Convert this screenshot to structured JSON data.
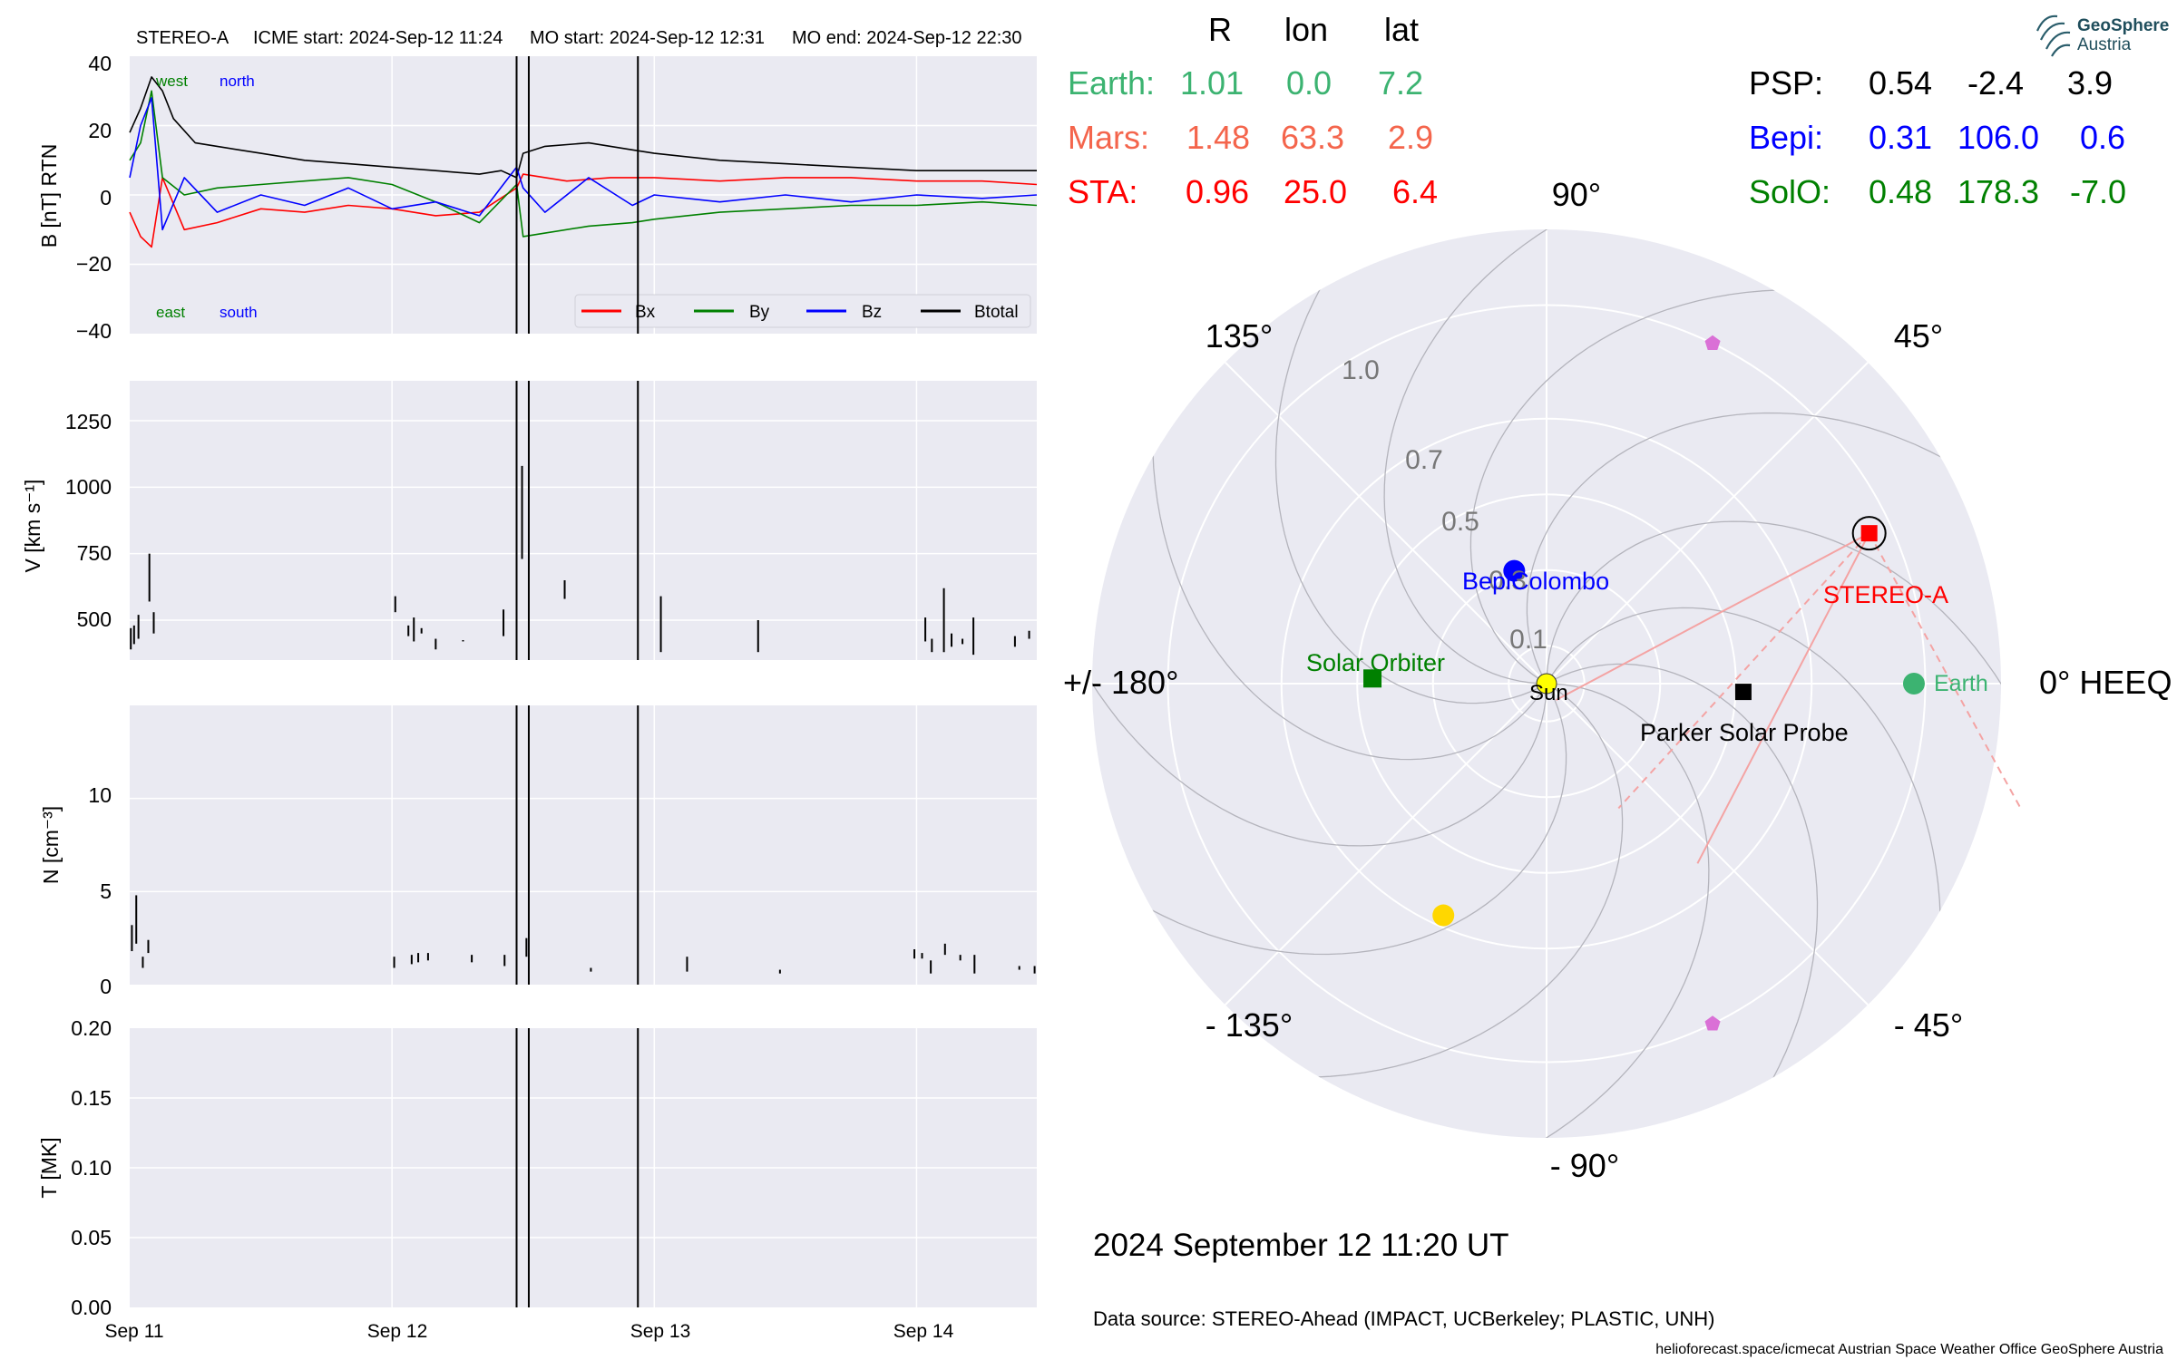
{
  "header": {
    "spacecraft": "STEREO-A",
    "icme_start": "ICME start: 2024-Sep-12 11:24",
    "mo_start": "MO start: 2024-Sep-12 12:31",
    "mo_end": "MO end: 2024-Sep-12 22:30"
  },
  "colors": {
    "bx": "#ff0000",
    "by": "#008000",
    "bz": "#0000ff",
    "btotal": "#000000",
    "earth": "#3cb371",
    "mars": "#f4654c",
    "sta": "#ff0000",
    "psp": "#000000",
    "bepi": "#0000ff",
    "solo": "#008000",
    "panel_bg": "#eaeaf2"
  },
  "chart_data": [
    {
      "type": "line",
      "panel": "magnetic-field",
      "ylabel": "B [nT] RTN",
      "ylim": [
        -40,
        40
      ],
      "yticks": [
        "40",
        "20",
        "0",
        "−20",
        "−40"
      ],
      "x_axis": {
        "start": "2024-09-11 00:00",
        "end": "2024-09-14 11:00",
        "ticks": [
          "Sep 11",
          "Sep 12",
          "Sep 13",
          "Sep 14"
        ]
      },
      "annotations": {
        "top_east": "west",
        "top_north": "north",
        "bottom_east": "east",
        "bottom_south": "south"
      },
      "legend": {
        "placement": "bottom-right",
        "entries": [
          "Bx",
          "By",
          "Bz",
          "Btotal"
        ]
      },
      "event_lines": [
        "2024-09-12 11:24",
        "2024-09-12 12:31",
        "2024-09-12 22:30"
      ],
      "series": [
        {
          "name": "Btotal",
          "t_hours": [
            0,
            1,
            2,
            3,
            4,
            6,
            8,
            10,
            12,
            16,
            20,
            24,
            28,
            32,
            34,
            35.4,
            36,
            38,
            42,
            46,
            48,
            54,
            60,
            66,
            72,
            78,
            83
          ],
          "values": [
            18,
            25,
            34,
            30,
            22,
            15,
            14,
            13,
            12,
            10,
            9,
            8,
            7,
            6,
            7,
            5,
            12,
            14,
            15,
            13,
            12,
            10,
            9,
            8,
            7,
            7,
            7
          ]
        },
        {
          "name": "Bx",
          "t_hours": [
            0,
            1,
            2,
            3,
            5,
            8,
            12,
            16,
            20,
            24,
            28,
            32,
            35.4,
            36,
            40,
            44,
            48,
            54,
            60,
            66,
            72,
            78,
            83
          ],
          "values": [
            -5,
            -12,
            -15,
            5,
            -10,
            -8,
            -4,
            -5,
            -3,
            -4,
            -6,
            -5,
            2,
            6,
            4,
            5,
            5,
            4,
            5,
            5,
            4,
            4,
            3
          ]
        },
        {
          "name": "By",
          "t_hours": [
            0,
            1,
            2,
            3,
            5,
            8,
            12,
            16,
            20,
            24,
            28,
            32,
            35.4,
            36,
            38,
            42,
            46,
            48,
            54,
            60,
            66,
            72,
            78,
            83
          ],
          "values": [
            10,
            15,
            30,
            5,
            0,
            2,
            3,
            4,
            5,
            3,
            -2,
            -8,
            3,
            -12,
            -11,
            -9,
            -8,
            -7,
            -5,
            -4,
            -3,
            -3,
            -2,
            -3
          ]
        },
        {
          "name": "Bz",
          "t_hours": [
            0,
            1,
            2,
            3,
            5,
            8,
            12,
            16,
            20,
            24,
            28,
            32,
            35.4,
            36,
            38,
            42,
            46,
            48,
            54,
            60,
            66,
            72,
            78,
            83
          ],
          "values": [
            5,
            20,
            28,
            -10,
            5,
            -5,
            0,
            -3,
            2,
            -4,
            -2,
            -6,
            8,
            2,
            -5,
            5,
            -3,
            0,
            -2,
            0,
            -2,
            0,
            -1,
            0
          ]
        }
      ]
    },
    {
      "type": "scatter",
      "panel": "speed",
      "ylabel": "V [km s⁻¹]",
      "ylim": [
        350,
        1400
      ],
      "yticks": [
        "1250",
        "1000",
        "750",
        "500"
      ],
      "segments": [
        {
          "t": 0.1,
          "lo": 390,
          "hi": 470
        },
        {
          "t": 0.4,
          "lo": 410,
          "hi": 480
        },
        {
          "t": 0.8,
          "lo": 430,
          "hi": 520
        },
        {
          "t": 1.8,
          "lo": 570,
          "hi": 750
        },
        {
          "t": 2.2,
          "lo": 450,
          "hi": 530
        },
        {
          "t": 24.3,
          "lo": 530,
          "hi": 590
        },
        {
          "t": 25.5,
          "lo": 440,
          "hi": 480
        },
        {
          "t": 26.0,
          "lo": 420,
          "hi": 510
        },
        {
          "t": 26.7,
          "lo": 450,
          "hi": 470
        },
        {
          "t": 28.0,
          "lo": 390,
          "hi": 430
        },
        {
          "t": 30.5,
          "lo": 420,
          "hi": 425
        },
        {
          "t": 34.2,
          "lo": 440,
          "hi": 540
        },
        {
          "t": 35.9,
          "lo": 730,
          "hi": 1080
        },
        {
          "t": 39.8,
          "lo": 580,
          "hi": 650
        },
        {
          "t": 48.6,
          "lo": 380,
          "hi": 590
        },
        {
          "t": 57.5,
          "lo": 380,
          "hi": 500
        },
        {
          "t": 72.8,
          "lo": 420,
          "hi": 510
        },
        {
          "t": 73.4,
          "lo": 380,
          "hi": 430
        },
        {
          "t": 74.5,
          "lo": 380,
          "hi": 620
        },
        {
          "t": 75.2,
          "lo": 400,
          "hi": 450
        },
        {
          "t": 76.2,
          "lo": 410,
          "hi": 430
        },
        {
          "t": 77.2,
          "lo": 370,
          "hi": 510
        },
        {
          "t": 81.0,
          "lo": 400,
          "hi": 440
        },
        {
          "t": 82.3,
          "lo": 430,
          "hi": 460
        }
      ]
    },
    {
      "type": "scatter",
      "panel": "density",
      "ylabel": "N [cm⁻³]",
      "ylim": [
        0,
        15
      ],
      "yticks": [
        "10",
        "5",
        "0"
      ],
      "segments": [
        {
          "t": 0.2,
          "lo": 1.8,
          "hi": 3.2
        },
        {
          "t": 0.6,
          "lo": 2.2,
          "hi": 4.8
        },
        {
          "t": 1.2,
          "lo": 0.9,
          "hi": 1.5
        },
        {
          "t": 1.7,
          "lo": 1.7,
          "hi": 2.4
        },
        {
          "t": 24.2,
          "lo": 0.9,
          "hi": 1.5
        },
        {
          "t": 25.8,
          "lo": 1.1,
          "hi": 1.6
        },
        {
          "t": 26.4,
          "lo": 1.2,
          "hi": 1.7
        },
        {
          "t": 27.3,
          "lo": 1.3,
          "hi": 1.7
        },
        {
          "t": 31.3,
          "lo": 1.2,
          "hi": 1.6
        },
        {
          "t": 34.3,
          "lo": 1.0,
          "hi": 1.6
        },
        {
          "t": 36.3,
          "lo": 1.5,
          "hi": 2.5
        },
        {
          "t": 42.2,
          "lo": 0.7,
          "hi": 0.9
        },
        {
          "t": 51.0,
          "lo": 0.7,
          "hi": 1.5
        },
        {
          "t": 59.5,
          "lo": 0.6,
          "hi": 0.8
        },
        {
          "t": 71.8,
          "lo": 1.4,
          "hi": 1.9
        },
        {
          "t": 72.5,
          "lo": 1.4,
          "hi": 1.7
        },
        {
          "t": 73.3,
          "lo": 0.6,
          "hi": 1.3
        },
        {
          "t": 74.6,
          "lo": 1.6,
          "hi": 2.2
        },
        {
          "t": 76.0,
          "lo": 1.3,
          "hi": 1.6
        },
        {
          "t": 77.3,
          "lo": 0.6,
          "hi": 1.6
        },
        {
          "t": 81.4,
          "lo": 0.8,
          "hi": 1.0
        },
        {
          "t": 82.8,
          "lo": 0.6,
          "hi": 1.0
        }
      ]
    },
    {
      "type": "line",
      "panel": "temperature",
      "ylabel": "T [MK]",
      "ylim": [
        0,
        0.2
      ],
      "yticks": [
        "0.20",
        "0.15",
        "0.10",
        "0.05",
        "0.00"
      ],
      "series": []
    },
    {
      "type": "scatter",
      "panel": "polar-position-plot",
      "coordinate_system": "0° HEEQ",
      "angle_labels": {
        "a0": "0° HEEQ",
        "a45": "45°",
        "a90": "90°",
        "a135": "135°",
        "a180": "+/- 180°",
        "am135": "- 135°",
        "am90": "- 90°",
        "am45": "- 45°"
      },
      "radial_ticks": [
        "0.1",
        "0.3",
        "0.5",
        "0.7",
        "1.0"
      ],
      "rmax": 1.2,
      "table_columns": [
        "R",
        "lon",
        "lat"
      ],
      "bodies": [
        {
          "name": "Earth",
          "label": "Earth:",
          "R": "1.01",
          "lon": "0.0",
          "lat": "7.2",
          "plot_label": "Earth",
          "r": 0.97,
          "theta": 0.0
        },
        {
          "name": "Mars",
          "label": "Mars:",
          "R": "1.48",
          "lon": "63.3",
          "lat": "2.9"
        },
        {
          "name": "STA",
          "label": "STA:",
          "R": "0.96",
          "lon": "25.0",
          "lat": "6.4",
          "plot_label": "STEREO-A",
          "r": 0.94,
          "theta": 25.0
        },
        {
          "name": "PSP",
          "label": "PSP:",
          "R": "0.54",
          "lon": "-2.4",
          "lat": "3.9",
          "plot_label": "Parker Solar Probe",
          "r": 0.52,
          "theta": -2.4
        },
        {
          "name": "Bepi",
          "label": "Bepi:",
          "R": "0.31",
          "lon": "106.0",
          "lat": "0.6",
          "plot_label": "BepiColombo",
          "r": 0.31,
          "theta": 106.0
        },
        {
          "name": "SolO",
          "label": "SolO:",
          "R": "0.48",
          "lon": "178.3",
          "lat": "-7.0",
          "plot_label": "Solar Orbiter",
          "r": 0.46,
          "theta": 178.3
        }
      ],
      "sun_label": "Sun",
      "other_markers": [
        {
          "kind": "pentagon",
          "color": "#da70d6",
          "r": 1.0,
          "theta": 64
        },
        {
          "kind": "pentagon",
          "color": "#da70d6",
          "r": 1.0,
          "theta": -64
        },
        {
          "kind": "circle",
          "color": "#ffd700",
          "r": 0.67,
          "theta": -114
        }
      ]
    }
  ],
  "footer": {
    "timestamp": "2024 September 12  11:20 UT",
    "data_source": "Data source: STEREO-Ahead (IMPACT, UCBerkeley; PLASTIC, UNH)",
    "credit": "helioforecast.space/icmecat   Austrian Space Weather Office   GeoSphere Austria"
  },
  "logo": {
    "line1": "GeoSphere",
    "line2": "Austria"
  }
}
